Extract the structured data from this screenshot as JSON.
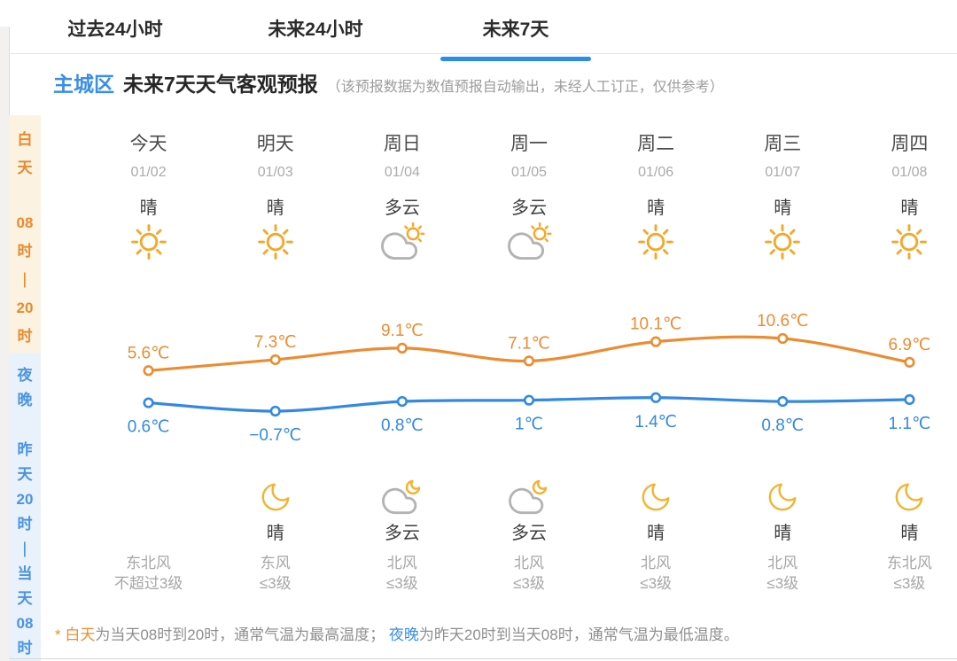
{
  "tabs": [
    {
      "label": "过去24小时",
      "active": false
    },
    {
      "label": "未来24小时",
      "active": false
    },
    {
      "label": "未来7天",
      "active": true
    }
  ],
  "header": {
    "region": "主城区",
    "title": "未来7天天气客观预报",
    "note": "（该预报数据为数值预报自动输出，未经人工订正，仅供参考）"
  },
  "sidebar": {
    "day": {
      "label": "白天 08时—20时",
      "tokens": [
        "白",
        "天",
        "",
        "08",
        "时",
        "—",
        "20",
        "时"
      ]
    },
    "night": {
      "label": "夜晚 昨天20时—当天08时",
      "tokens": [
        "夜",
        "晚",
        "",
        "昨",
        "天",
        "20",
        "时",
        "—",
        "当",
        "天",
        "08",
        "时"
      ]
    }
  },
  "columns": [
    {
      "day": "今天",
      "date": "01/02",
      "day_weather": "晴",
      "day_icon": "sun",
      "night_icon": null,
      "night_weather": "",
      "wind_dir": "东北风",
      "wind_level": "不超过3级"
    },
    {
      "day": "明天",
      "date": "01/03",
      "day_weather": "晴",
      "day_icon": "sun",
      "night_icon": "moon",
      "night_weather": "晴",
      "wind_dir": "东风",
      "wind_level": "≤3级"
    },
    {
      "day": "周日",
      "date": "01/04",
      "day_weather": "多云",
      "day_icon": "cloud-sun",
      "night_icon": "cloud-moon",
      "night_weather": "多云",
      "wind_dir": "北风",
      "wind_level": "≤3级"
    },
    {
      "day": "周一",
      "date": "01/05",
      "day_weather": "多云",
      "day_icon": "cloud-sun",
      "night_icon": "cloud-moon",
      "night_weather": "多云",
      "wind_dir": "北风",
      "wind_level": "≤3级"
    },
    {
      "day": "周二",
      "date": "01/06",
      "day_weather": "晴",
      "day_icon": "sun",
      "night_icon": "moon",
      "night_weather": "晴",
      "wind_dir": "北风",
      "wind_level": "≤3级"
    },
    {
      "day": "周三",
      "date": "01/07",
      "day_weather": "晴",
      "day_icon": "sun",
      "night_icon": "moon",
      "night_weather": "晴",
      "wind_dir": "北风",
      "wind_level": "≤3级"
    },
    {
      "day": "周四",
      "date": "01/08",
      "day_weather": "晴",
      "day_icon": "sun",
      "night_icon": "moon",
      "night_weather": "晴",
      "wind_dir": "东北风",
      "wind_level": "≤3级"
    }
  ],
  "chart_data": {
    "type": "line",
    "categories": [
      "今天",
      "明天",
      "周日",
      "周一",
      "周二",
      "周三",
      "周四"
    ],
    "x_dates": [
      "01/02",
      "01/03",
      "01/04",
      "01/05",
      "01/06",
      "01/07",
      "01/08"
    ],
    "series": [
      {
        "name": "白天最高气温",
        "color": "#EB8C31",
        "values": [
          5.6,
          7.3,
          9.1,
          7.1,
          10.1,
          10.6,
          6.9
        ],
        "labels": [
          "5.6℃",
          "7.3℃",
          "9.1℃",
          "7.1℃",
          "10.1℃",
          "10.6℃",
          "6.9℃"
        ]
      },
      {
        "name": "夜晚最低气温",
        "color": "#3389E2",
        "values": [
          0.6,
          -0.7,
          0.8,
          1,
          1.4,
          0.8,
          1.1
        ],
        "labels": [
          "0.6℃",
          "−0.7℃",
          "0.8℃",
          "1℃",
          "1.4℃",
          "0.8℃",
          "1.1℃"
        ]
      }
    ],
    "unit": "℃",
    "grid": false,
    "legend": "none",
    "markers": "hollow-circle"
  },
  "footer": {
    "parts": [
      {
        "text": "* ",
        "style": "orange"
      },
      {
        "text": "白天",
        "style": "orange"
      },
      {
        "text": "为当天08时到20时，通常气温为最高温度； ",
        "style": "gray"
      },
      {
        "text": "夜晚",
        "style": "blue"
      },
      {
        "text": "为昨天20时到当天08时，通常气温为最低温度。",
        "style": "gray"
      }
    ]
  },
  "colors": {
    "accent_blue": "#2B8DEB",
    "high_line": "#EB8C31",
    "low_line": "#3389E2",
    "day_band_bg": "#FCF2E2",
    "night_band_bg": "#E9F1FA",
    "day_band_text": "#E78B2E",
    "night_band_text": "#4A94E2"
  }
}
